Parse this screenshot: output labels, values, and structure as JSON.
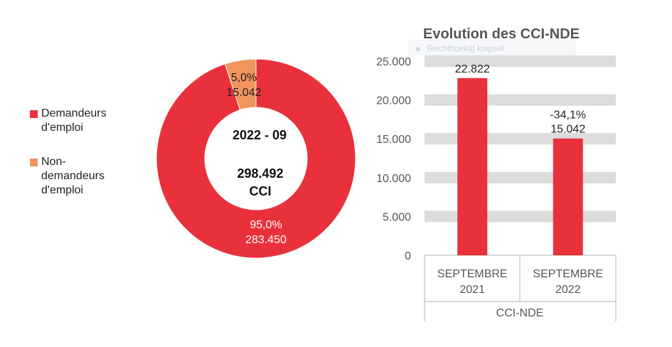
{
  "chart_data": [
    {
      "type": "pie",
      "variant": "donut",
      "center_label": {
        "period": "2022 - 09",
        "total": "298.492",
        "unit": "CCI"
      },
      "legend_placement": "left",
      "slices": [
        {
          "name": "Demandeurs d'emploi",
          "value": 283450,
          "value_label": "283.450",
          "percent_label": "95,0%",
          "color": "#E8313A"
        },
        {
          "name": "Non-demandeurs d'emploi",
          "value": 15042,
          "value_label": "15.042",
          "percent_label": "5,0%",
          "color": "#F0955C"
        }
      ]
    },
    {
      "type": "bar",
      "title": "Evolution des CCI-NDE",
      "categories": [
        [
          "SEPTEMBRE",
          "2021"
        ],
        [
          "SEPTEMBRE",
          "2022"
        ]
      ],
      "group_label": "CCI-NDE",
      "values": [
        22822,
        15042
      ],
      "data_labels": [
        [
          "22.822"
        ],
        [
          "-34,1%",
          "15.042"
        ]
      ],
      "ylim": [
        0,
        25000
      ],
      "yticks": [
        0,
        5000,
        10000,
        15000,
        20000,
        25000
      ],
      "ytick_labels": [
        "0",
        "5.000",
        "10.000",
        "15.000",
        "20.000",
        "25.000"
      ],
      "grid": "horizontal bands",
      "bar_color": "#E8313A"
    }
  ],
  "overlay": {
    "tooltip_text": "Rechthoekig knipsel"
  }
}
